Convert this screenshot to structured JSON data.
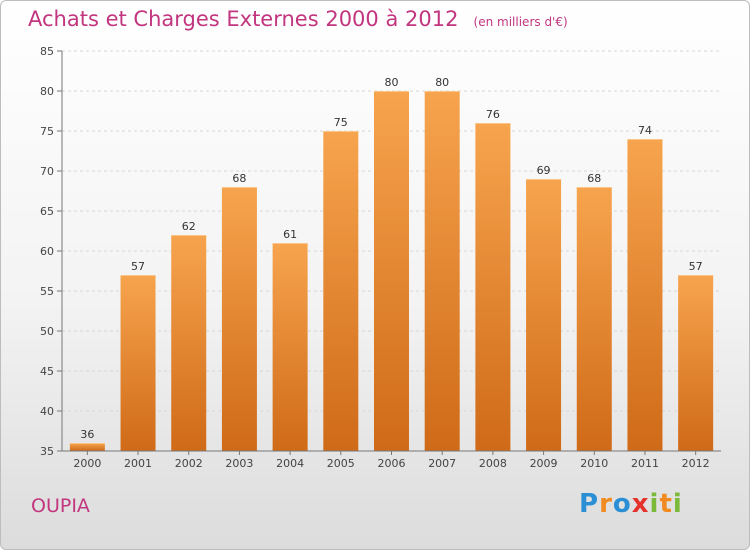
{
  "header": {
    "title": "Achats et Charges Externes 2000 à 2012",
    "unit": "(en milliers d'€)"
  },
  "footer": {
    "place": "OUPIA",
    "logo": {
      "letters": [
        "P",
        "r",
        "o",
        "x",
        "i",
        "t",
        "i"
      ],
      "colors": [
        "#2b8fd6",
        "#f18a1f",
        "#2b8fd6",
        "#e5322d",
        "#7ab93a",
        "#f18a1f",
        "#7ab93a"
      ]
    }
  },
  "colors": {
    "bar_light": "#f7a44e",
    "bar_dark": "#cf6a18",
    "accent": "#c2357f"
  },
  "chart_data": {
    "type": "bar",
    "categories": [
      "2000",
      "2001",
      "2002",
      "2003",
      "2004",
      "2005",
      "2006",
      "2007",
      "2008",
      "2009",
      "2010",
      "2011",
      "2012"
    ],
    "values": [
      36,
      57,
      62,
      68,
      61,
      75,
      80,
      80,
      76,
      69,
      68,
      74,
      57
    ],
    "title": "Achats et Charges Externes 2000 à 2012",
    "xlabel": "",
    "ylabel": "",
    "ylim": [
      35,
      85
    ],
    "yticks": [
      35,
      40,
      45,
      50,
      55,
      60,
      65,
      70,
      75,
      80,
      85
    ],
    "grid": true
  }
}
